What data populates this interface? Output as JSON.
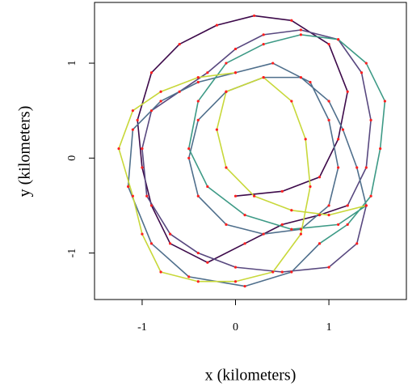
{
  "chart_data": {
    "type": "line",
    "xlabel": "x (kilometers)",
    "ylabel": "y (kilometers)",
    "xlim": [
      -1.51,
      1.83
    ],
    "ylim": [
      -1.49,
      1.64
    ],
    "xticks": [
      -1,
      0,
      1
    ],
    "yticks": [
      -1,
      0,
      1
    ],
    "marker_color": "#ff2020",
    "series": [
      {
        "color": "#3d0a4a",
        "x": [
          0.0,
          0.5,
          0.9,
          1.1,
          1.2,
          1.0,
          0.6,
          0.2,
          -0.2,
          -0.6,
          -0.9,
          -1.05,
          -1.0,
          -0.9,
          -0.7,
          -0.3,
          0.1,
          0.5,
          0.9,
          1.2
        ],
        "values": [
          -0.4,
          -0.35,
          -0.2,
          0.2,
          0.7,
          1.2,
          1.45,
          1.5,
          1.4,
          1.2,
          0.9,
          0.4,
          -0.1,
          -0.5,
          -0.9,
          -1.1,
          -0.9,
          -0.7,
          -0.6,
          -0.5
        ]
      },
      {
        "color": "#58487f",
        "x": [
          1.2,
          1.4,
          1.45,
          1.35,
          1.1,
          0.7,
          0.3,
          0.0,
          -0.3,
          -0.6,
          -0.9,
          -1.0,
          -0.95,
          -0.7,
          -0.4,
          0.0,
          0.5,
          1.0,
          1.3,
          1.4
        ],
        "values": [
          -0.5,
          -0.1,
          0.4,
          0.9,
          1.25,
          1.35,
          1.3,
          1.15,
          0.9,
          0.7,
          0.5,
          0.1,
          -0.4,
          -0.8,
          -1.0,
          -1.15,
          -1.2,
          -1.15,
          -0.9,
          -0.5
        ]
      },
      {
        "color": "#4f6f8c",
        "x": [
          1.4,
          1.3,
          1.15,
          1.0,
          0.7,
          0.3,
          -0.1,
          -0.4,
          -0.5,
          -0.4,
          -0.1,
          0.3,
          0.7,
          1.0,
          1.1,
          1.0,
          0.8,
          0.4,
          0.0,
          -0.4,
          -0.8,
          -1.1,
          -1.15,
          -0.9,
          -0.5,
          0.1,
          0.6,
          0.9
        ],
        "values": [
          -0.5,
          -0.1,
          0.3,
          0.6,
          0.85,
          0.85,
          0.7,
          0.4,
          0.0,
          -0.4,
          -0.7,
          -0.8,
          -0.75,
          -0.5,
          -0.1,
          0.4,
          0.8,
          1.0,
          0.9,
          0.8,
          0.6,
          0.3,
          -0.3,
          -0.9,
          -1.25,
          -1.35,
          -1.2,
          -0.9
        ]
      },
      {
        "color": "#3d9a86",
        "x": [
          0.9,
          1.2,
          1.45,
          1.55,
          1.6,
          1.4,
          1.1,
          0.7,
          0.3,
          -0.1,
          -0.4,
          -0.5,
          -0.3,
          0.1,
          0.6,
          1.1,
          1.4
        ],
        "values": [
          -0.9,
          -0.7,
          -0.4,
          0.1,
          0.6,
          1.0,
          1.25,
          1.3,
          1.2,
          1.0,
          0.6,
          0.1,
          -0.3,
          -0.6,
          -0.75,
          -0.7,
          -0.5
        ]
      },
      {
        "color": "#c8d83a",
        "x": [
          1.4,
          1.0,
          0.6,
          0.2,
          -0.1,
          -0.2,
          -0.1,
          0.3,
          0.6,
          0.75,
          0.8,
          0.7,
          0.4,
          0.0,
          -0.4,
          -0.8,
          -1.0,
          -1.1,
          -1.25,
          -1.1,
          -0.8,
          -0.4,
          0.0
        ],
        "values": [
          -0.5,
          -0.6,
          -0.55,
          -0.4,
          -0.1,
          0.3,
          0.7,
          0.85,
          0.6,
          0.2,
          -0.3,
          -0.8,
          -1.2,
          -1.3,
          -1.3,
          -1.2,
          -0.8,
          -0.4,
          0.1,
          0.5,
          0.7,
          0.85,
          0.9
        ]
      }
    ]
  }
}
